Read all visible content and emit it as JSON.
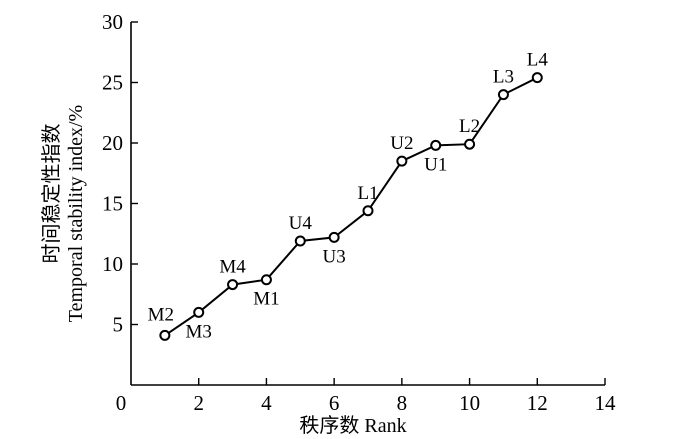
{
  "chart_data": {
    "type": "line",
    "xlabel": "秩序数 Rank",
    "ylabel_line1": "时间稳定性指数",
    "ylabel_line2": "Temporal stability index/%",
    "xlim": [
      0,
      14
    ],
    "ylim": [
      0,
      30
    ],
    "xticks": [
      0,
      2,
      4,
      6,
      8,
      10,
      12,
      14
    ],
    "yticks": [
      5,
      10,
      15,
      20,
      25,
      30
    ],
    "grid": false,
    "series": [
      {
        "points": [
          {
            "x": 1,
            "y": 4.1,
            "label": "M2",
            "label_pos": "above"
          },
          {
            "x": 2,
            "y": 6.0,
            "label": "M3",
            "label_pos": "below"
          },
          {
            "x": 3,
            "y": 8.3,
            "label": "M4",
            "label_pos": "above"
          },
          {
            "x": 4,
            "y": 8.7,
            "label": "M1",
            "label_pos": "below"
          },
          {
            "x": 5,
            "y": 11.9,
            "label": "U4",
            "label_pos": "above"
          },
          {
            "x": 6,
            "y": 12.2,
            "label": "U3",
            "label_pos": "below"
          },
          {
            "x": 7,
            "y": 14.4,
            "label": "L1",
            "label_pos": "above"
          },
          {
            "x": 8,
            "y": 18.5,
            "label": "U2",
            "label_pos": "above"
          },
          {
            "x": 9,
            "y": 19.8,
            "label": "U1",
            "label_pos": "below"
          },
          {
            "x": 10,
            "y": 19.9,
            "label": "L2",
            "label_pos": "above"
          },
          {
            "x": 11,
            "y": 24.0,
            "label": "L3",
            "label_pos": "above"
          },
          {
            "x": 12,
            "y": 25.4,
            "label": "L4",
            "label_pos": "above"
          }
        ]
      }
    ]
  }
}
